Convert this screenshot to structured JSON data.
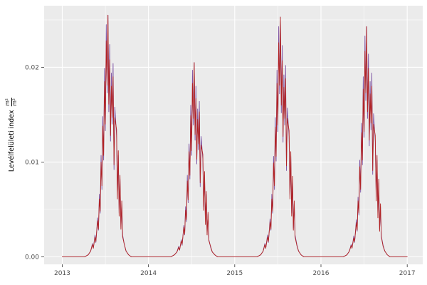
{
  "figure": {
    "background": "#FFFFFF",
    "panel_background": "#EBEBEB",
    "grid_major_color": "#FFFFFF",
    "grid_minor_color": "#FFFFFF",
    "tick_label_color": "#4D4D4D",
    "tick_mark_color": "#333333"
  },
  "axes": {
    "y_title": "Levélfelületi index",
    "y_frac_num": "m²",
    "y_frac_den": "m²",
    "x_tick_labels": [
      "2013",
      "2014",
      "2015",
      "2016",
      "2017"
    ],
    "y_tick_labels": [
      "0.00",
      "0.01",
      "0.02"
    ]
  },
  "chart_data": {
    "type": "line",
    "title": "",
    "xlabel": "",
    "ylabel": "Levélfelületi index (m²/m²)",
    "legend": "none",
    "grid": true,
    "xlim": [
      2012.79,
      2017.18
    ],
    "ylim": [
      -0.0008,
      0.0265
    ],
    "xticks": [
      2013,
      2014,
      2015,
      2016,
      2017
    ],
    "yticks": [
      0,
      0.01,
      0.02
    ],
    "x_minor": [
      2013.5,
      2014.5,
      2015.5,
      2016.5
    ],
    "y_minor": [
      0.005,
      0.015,
      0.025
    ],
    "seasonal_peaks": {
      "2013": 0.0255,
      "2014": 0.0205,
      "2015": 0.0253,
      "2016": 0.0243
    },
    "x": [
      2013.0,
      2013.26,
      2013.3,
      2013.33,
      2013.35,
      2013.36,
      2013.38,
      2013.39,
      2013.41,
      2013.42,
      2013.43,
      2013.44,
      2013.45,
      2013.46,
      2013.47,
      2013.48,
      2013.49,
      2013.5,
      2013.51,
      2013.52,
      2013.53,
      2013.54,
      2013.55,
      2013.56,
      2013.57,
      2013.58,
      2013.59,
      2013.6,
      2013.61,
      2013.63,
      2013.64,
      2013.65,
      2013.66,
      2013.67,
      2013.68,
      2013.69,
      2013.7,
      2013.72,
      2013.74,
      2013.77,
      2013.8,
      2014.26,
      2014.3,
      2014.33,
      2014.35,
      2014.36,
      2014.38,
      2014.39,
      2014.41,
      2014.42,
      2014.43,
      2014.44,
      2014.45,
      2014.46,
      2014.47,
      2014.48,
      2014.49,
      2014.5,
      2014.51,
      2014.52,
      2014.53,
      2014.54,
      2014.55,
      2014.56,
      2014.57,
      2014.58,
      2014.59,
      2014.6,
      2014.61,
      2014.63,
      2014.64,
      2014.65,
      2014.66,
      2014.67,
      2014.68,
      2014.69,
      2014.7,
      2014.72,
      2014.74,
      2014.77,
      2014.8,
      2015.26,
      2015.3,
      2015.33,
      2015.35,
      2015.36,
      2015.38,
      2015.39,
      2015.41,
      2015.42,
      2015.43,
      2015.44,
      2015.45,
      2015.46,
      2015.47,
      2015.48,
      2015.49,
      2015.5,
      2015.51,
      2015.52,
      2015.53,
      2015.54,
      2015.55,
      2015.56,
      2015.57,
      2015.58,
      2015.59,
      2015.6,
      2015.61,
      2015.63,
      2015.64,
      2015.65,
      2015.66,
      2015.67,
      2015.68,
      2015.69,
      2015.7,
      2015.72,
      2015.74,
      2015.77,
      2015.8,
      2016.26,
      2016.3,
      2016.33,
      2016.35,
      2016.36,
      2016.38,
      2016.39,
      2016.41,
      2016.42,
      2016.43,
      2016.44,
      2016.45,
      2016.46,
      2016.47,
      2016.48,
      2016.49,
      2016.5,
      2016.51,
      2016.52,
      2016.53,
      2016.54,
      2016.55,
      2016.56,
      2016.57,
      2016.58,
      2016.59,
      2016.6,
      2016.61,
      2016.63,
      2016.64,
      2016.65,
      2016.66,
      2016.67,
      2016.68,
      2016.69,
      2016.7,
      2016.72,
      2016.74,
      2016.77,
      2016.8,
      2017.0
    ],
    "series": [
      {
        "name": "series-1-purple",
        "color": "#7E55A4",
        "y": [
          0,
          0,
          0.0002,
          0.0006,
          0.0014,
          0.0009,
          0.0023,
          0.0015,
          0.0041,
          0.0028,
          0.0066,
          0.0046,
          0.0107,
          0.0071,
          0.0148,
          0.0102,
          0.0199,
          0.0133,
          0.0245,
          0.0173,
          0.0255,
          0.0153,
          0.0224,
          0.0122,
          0.0194,
          0.014,
          0.0204,
          0.0092,
          0.0158,
          0.0128,
          0.0066,
          0.0107,
          0.0046,
          0.0082,
          0.0031,
          0.0056,
          0.0023,
          0.0013,
          0.0006,
          0.0002,
          0,
          0,
          0.0002,
          0.0005,
          0.0011,
          0.0007,
          0.0018,
          0.0012,
          0.0033,
          0.0023,
          0.0053,
          0.0037,
          0.0086,
          0.0057,
          0.0119,
          0.0082,
          0.016,
          0.0107,
          0.0197,
          0.0139,
          0.0205,
          0.0123,
          0.018,
          0.0098,
          0.0156,
          0.0113,
          0.0164,
          0.0074,
          0.0127,
          0.0103,
          0.0053,
          0.0086,
          0.0037,
          0.0066,
          0.0025,
          0.0045,
          0.0018,
          0.001,
          0.0005,
          0.0002,
          0,
          0,
          0.0002,
          0.0006,
          0.0014,
          0.0009,
          0.0023,
          0.0015,
          0.004,
          0.0028,
          0.0066,
          0.0046,
          0.0106,
          0.0071,
          0.0147,
          0.0101,
          0.0197,
          0.0132,
          0.0243,
          0.0172,
          0.0253,
          0.0152,
          0.0223,
          0.0121,
          0.0192,
          0.0139,
          0.0202,
          0.0091,
          0.0157,
          0.0127,
          0.0066,
          0.0106,
          0.0046,
          0.0081,
          0.003,
          0.0056,
          0.0023,
          0.0013,
          0.0006,
          0.0002,
          0,
          0,
          0.0002,
          0.0006,
          0.0013,
          0.0009,
          0.0022,
          0.0015,
          0.0039,
          0.0027,
          0.0063,
          0.0044,
          0.0102,
          0.0068,
          0.0141,
          0.0097,
          0.019,
          0.0126,
          0.0233,
          0.0165,
          0.0243,
          0.0146,
          0.0214,
          0.0117,
          0.0185,
          0.0134,
          0.0194,
          0.0087,
          0.0151,
          0.0122,
          0.0063,
          0.0102,
          0.0044,
          0.0078,
          0.0029,
          0.0053,
          0.0022,
          0.0012,
          0.0006,
          0.0002,
          0,
          0
        ]
      },
      {
        "name": "series-2-red",
        "color": "#B22222",
        "y": [
          0,
          0,
          0.0002,
          0.0006,
          0.0013,
          0.0009,
          0.0021,
          0.0016,
          0.0038,
          0.0029,
          0.0061,
          0.0048,
          0.01,
          0.0075,
          0.0138,
          0.0107,
          0.0185,
          0.014,
          0.0228,
          0.0181,
          0.0255,
          0.0161,
          0.0208,
          0.0128,
          0.018,
          0.0147,
          0.019,
          0.0097,
          0.0147,
          0.0134,
          0.0061,
          0.0112,
          0.0043,
          0.0086,
          0.0029,
          0.0059,
          0.0021,
          0.0013,
          0.0006,
          0.0002,
          0,
          0,
          0.0002,
          0.0005,
          0.001,
          0.0007,
          0.0017,
          0.0013,
          0.0031,
          0.0024,
          0.0049,
          0.0039,
          0.008,
          0.006,
          0.0111,
          0.0086,
          0.0149,
          0.0112,
          0.0183,
          0.0146,
          0.0205,
          0.0129,
          0.0167,
          0.0103,
          0.0145,
          0.0119,
          0.0153,
          0.0078,
          0.0118,
          0.0108,
          0.0049,
          0.009,
          0.0034,
          0.0069,
          0.0023,
          0.0047,
          0.0017,
          0.0011,
          0.0005,
          0.0002,
          0,
          0,
          0.0002,
          0.0006,
          0.0013,
          0.0009,
          0.0021,
          0.0016,
          0.0037,
          0.0029,
          0.0061,
          0.0048,
          0.0099,
          0.0075,
          0.0137,
          0.0106,
          0.0183,
          0.0139,
          0.0226,
          0.0181,
          0.0253,
          0.016,
          0.0207,
          0.0127,
          0.0179,
          0.0146,
          0.0188,
          0.0096,
          0.0146,
          0.0133,
          0.0061,
          0.0111,
          0.0043,
          0.0085,
          0.0028,
          0.0059,
          0.0021,
          0.0012,
          0.0006,
          0.0002,
          0,
          0,
          0.0002,
          0.0006,
          0.0012,
          0.0009,
          0.002,
          0.0016,
          0.0036,
          0.0028,
          0.0059,
          0.0046,
          0.0095,
          0.0071,
          0.0131,
          0.0102,
          0.0177,
          0.0132,
          0.0217,
          0.0173,
          0.0243,
          0.0153,
          0.0199,
          0.0123,
          0.0172,
          0.0141,
          0.018,
          0.0091,
          0.014,
          0.0128,
          0.0059,
          0.0107,
          0.0041,
          0.0082,
          0.0027,
          0.0056,
          0.0021,
          0.0011,
          0.0006,
          0.0002,
          0,
          0
        ]
      }
    ]
  }
}
